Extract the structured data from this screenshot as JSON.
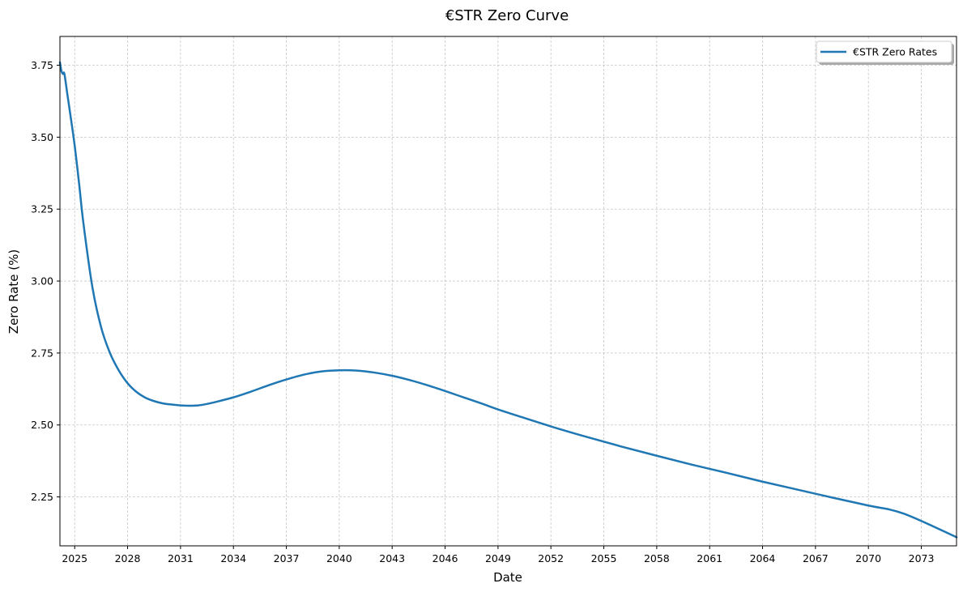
{
  "chart_data": {
    "type": "line",
    "title": "€STR Zero Curve",
    "xlabel": "Date",
    "ylabel": "Zero Rate (%)",
    "xlim": [
      "2024-03-01",
      "2074-12-31"
    ],
    "ylim": [
      2.08,
      3.85
    ],
    "x_ticks": [
      "2025",
      "2028",
      "2031",
      "2034",
      "2037",
      "2040",
      "2043",
      "2046",
      "2049",
      "2052",
      "2055",
      "2058",
      "2061",
      "2064",
      "2067",
      "2070",
      "2073"
    ],
    "y_ticks": [
      "2.25",
      "2.50",
      "2.75",
      "3.00",
      "3.25",
      "3.50",
      "3.75"
    ],
    "grid": true,
    "legend_position": "top-right",
    "colors": {
      "series": "#1f77b4"
    },
    "series": [
      {
        "name": "€STR Zero Rates",
        "x": [
          "2024-03-01",
          "2024-04-01",
          "2024-05-01",
          "2024-06-01",
          "2024-08-01",
          "2024-10-01",
          "2025-01-01",
          "2025-04-01",
          "2025-07-01",
          "2026-01-01",
          "2026-07-01",
          "2027-01-01",
          "2027-07-01",
          "2028-01-01",
          "2028-07-01",
          "2029-01-01",
          "2029-07-01",
          "2030-01-01",
          "2030-07-01",
          "2031-01-01",
          "2031-07-01",
          "2032-01-01",
          "2032-07-01",
          "2033-01-01",
          "2034-01-01",
          "2035-01-01",
          "2036-01-01",
          "2037-01-01",
          "2038-01-01",
          "2039-01-01",
          "2040-01-01",
          "2041-01-01",
          "2042-01-01",
          "2043-01-01",
          "2044-01-01",
          "2045-01-01",
          "2046-01-01",
          "2047-01-01",
          "2048-01-01",
          "2049-01-01",
          "2050-01-01",
          "2052-01-01",
          "2054-01-01",
          "2056-01-01",
          "2058-01-01",
          "2060-01-01",
          "2062-01-01",
          "2064-01-01",
          "2066-01-01",
          "2068-01-01",
          "2070-01-01",
          "2072-01-01",
          "2074-12-31"
        ],
        "values": [
          3.76,
          3.73,
          3.72,
          3.72,
          3.65,
          3.58,
          3.47,
          3.34,
          3.2,
          2.98,
          2.84,
          2.75,
          2.69,
          2.645,
          2.615,
          2.595,
          2.583,
          2.575,
          2.571,
          2.568,
          2.567,
          2.568,
          2.573,
          2.58,
          2.596,
          2.616,
          2.638,
          2.658,
          2.675,
          2.686,
          2.69,
          2.689,
          2.682,
          2.671,
          2.656,
          2.638,
          2.618,
          2.597,
          2.576,
          2.554,
          2.534,
          2.495,
          2.459,
          2.425,
          2.393,
          2.362,
          2.333,
          2.303,
          2.275,
          2.247,
          2.22,
          2.192,
          2.11
        ]
      }
    ]
  }
}
